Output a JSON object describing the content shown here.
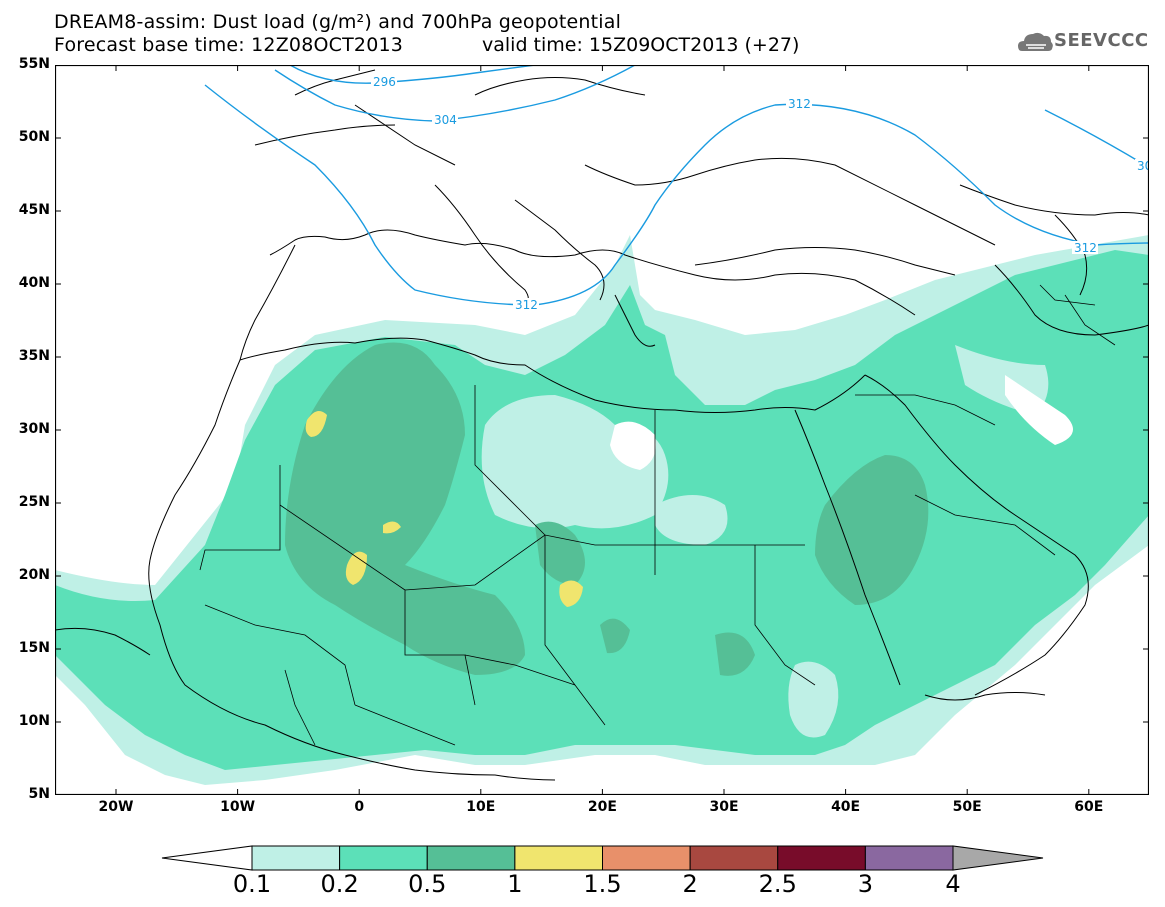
{
  "header": {
    "line1": "DREAM8-assim: Dust load (g/m²) and 700hPa geopotential",
    "line2a": "Forecast base time: 12Z08OCT2013",
    "line2b": "valid time: 15Z09OCT2013 (+27)"
  },
  "logo": {
    "text": "SEEVCCC",
    "icon": "cloud-logo-icon"
  },
  "axes": {
    "lat_labels": [
      "55N",
      "50N",
      "45N",
      "40N",
      "35N",
      "30N",
      "25N",
      "20N",
      "15N",
      "10N",
      "5N"
    ],
    "lon_labels": [
      "20W",
      "10W",
      "0",
      "10E",
      "20E",
      "30E",
      "40E",
      "50E",
      "60E"
    ]
  },
  "contours": {
    "geopotential_labels": [
      "296",
      "304",
      "312",
      "312",
      "312",
      "312",
      "30"
    ],
    "color": "#1a9be0"
  },
  "colorbar": {
    "labels": [
      "0.1",
      "0.2",
      "0.5",
      "1",
      "1.5",
      "2",
      "2.5",
      "3",
      "4"
    ],
    "colors": [
      "#ffffff",
      "#bff0e6",
      "#5ce0b8",
      "#55bf96",
      "#f0e56e",
      "#e8906a",
      "#a84840",
      "#780c2a",
      "#8a68a0",
      "#a8a8a8"
    ]
  }
}
